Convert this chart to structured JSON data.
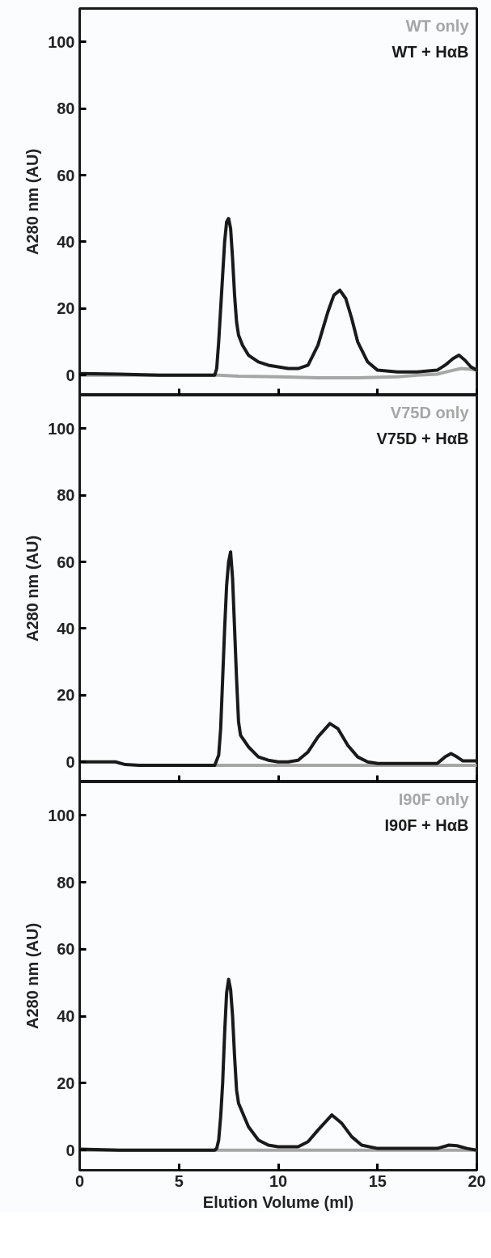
{
  "chart_data": [
    {
      "type": "line",
      "ylabel": "A280 nm (AU)",
      "xlim": [
        0,
        20
      ],
      "xticks": [
        {
          "value": 0,
          "label": null
        },
        {
          "value": 5,
          "label": null
        },
        {
          "value": 10,
          "label": null
        },
        {
          "value": 15,
          "label": null
        },
        {
          "value": 20,
          "label": null
        }
      ],
      "ylim": [
        -6,
        110
      ],
      "yticks": [
        0,
        20,
        40,
        60,
        80,
        100
      ],
      "tick_labels": "y",
      "legend": "top right",
      "grid": false,
      "series": [
        {
          "name": "WT only",
          "color": "#a6a6a6",
          "x": [
            0,
            2,
            4,
            6,
            7,
            8,
            10,
            12,
            14,
            16,
            17,
            18,
            18.6,
            19.2,
            19.6,
            20
          ],
          "values": [
            0,
            0,
            0,
            0,
            0,
            -0.3,
            -0.5,
            -0.8,
            -0.8,
            -0.5,
            0,
            0.3,
            1.2,
            2,
            1.8,
            1.5
          ]
        },
        {
          "name": "WT + HαB",
          "color": "#1a1a1a",
          "x": [
            0,
            2,
            4,
            6,
            6.8,
            6.9,
            7.0,
            7.1,
            7.2,
            7.3,
            7.4,
            7.5,
            7.6,
            7.7,
            7.8,
            7.9,
            8.0,
            8.2,
            8.5,
            9,
            9.5,
            10,
            10.5,
            11,
            11.5,
            12,
            12.5,
            12.8,
            13.1,
            13.4,
            13.7,
            14,
            14.5,
            15,
            16,
            17,
            18,
            18.4,
            18.8,
            19.1,
            19.4,
            19.7,
            20
          ],
          "values": [
            0.5,
            0.3,
            0,
            0,
            0,
            2,
            10,
            20,
            30,
            40,
            46,
            47,
            44,
            35,
            24,
            16,
            12,
            9,
            6,
            4,
            3,
            2.5,
            2,
            2,
            3,
            9,
            19,
            24,
            25.5,
            23,
            17,
            10,
            4,
            1.5,
            1,
            1,
            1.5,
            3,
            5,
            6,
            4.5,
            2.5,
            1.5
          ]
        }
      ]
    },
    {
      "type": "line",
      "ylabel": "A280 nm (AU)",
      "xlim": [
        0,
        20
      ],
      "xticks": [
        {
          "value": 0,
          "label": null
        },
        {
          "value": 5,
          "label": null
        },
        {
          "value": 10,
          "label": null
        },
        {
          "value": 15,
          "label": null
        },
        {
          "value": 20,
          "label": null
        }
      ],
      "ylim": [
        -6,
        110
      ],
      "yticks": [
        0,
        20,
        40,
        60,
        80,
        100
      ],
      "tick_labels": "y",
      "legend": "top right",
      "grid": false,
      "series": [
        {
          "name": "V75D only",
          "color": "#a6a6a6",
          "x": [
            6.8,
            8,
            10,
            12,
            14,
            16,
            18,
            20
          ],
          "values": [
            -1,
            -1,
            -1,
            -1,
            -1,
            -1,
            -1,
            -1
          ]
        },
        {
          "name": "V75D + HαB",
          "color": "#1a1a1a",
          "x": [
            0,
            1,
            1.8,
            2.3,
            3,
            5,
            6.8,
            7.0,
            7.1,
            7.2,
            7.3,
            7.4,
            7.5,
            7.6,
            7.7,
            7.8,
            7.9,
            8.0,
            8.1,
            8.5,
            9,
            9.5,
            10,
            10.5,
            11,
            11.5,
            12,
            12.6,
            13,
            13.5,
            14,
            14.5,
            15,
            17,
            18,
            18.4,
            18.7,
            19.0,
            19.3,
            20
          ],
          "values": [
            0,
            0,
            0,
            -0.8,
            -1,
            -1,
            -1,
            2,
            10,
            25,
            40,
            53,
            60,
            63,
            55,
            40,
            25,
            12,
            8,
            4.5,
            1.5,
            0.5,
            0,
            0,
            0.5,
            3,
            7.5,
            11.5,
            10,
            5,
            1.5,
            0,
            -0.5,
            -0.5,
            -0.5,
            1.5,
            2.5,
            1.5,
            0.3,
            0.3
          ]
        }
      ]
    },
    {
      "type": "line",
      "ylabel": "A280 nm (AU)",
      "xlabel": "Elution Volume (ml)",
      "xlim": [
        0,
        20
      ],
      "xticks": [
        0,
        5,
        10,
        15,
        20
      ],
      "ylim": [
        -6,
        110
      ],
      "yticks": [
        0,
        20,
        40,
        60,
        80,
        100
      ],
      "legend": "top right",
      "grid": false,
      "series": [
        {
          "name": "I90F only",
          "color": "#a6a6a6",
          "x": [
            0,
            2,
            4,
            6,
            8,
            10,
            12,
            14,
            16,
            18,
            20
          ],
          "values": [
            0,
            0,
            0,
            0,
            0,
            0,
            0,
            0,
            0,
            0,
            0
          ]
        },
        {
          "name": "I90F + HαB",
          "color": "#1a1a1a",
          "x": [
            0,
            2,
            4,
            6,
            6.8,
            6.9,
            7.0,
            7.1,
            7.2,
            7.3,
            7.4,
            7.5,
            7.6,
            7.7,
            7.8,
            7.9,
            8.0,
            8.5,
            9,
            9.5,
            10,
            11,
            11.5,
            12,
            12.7,
            13.2,
            13.7,
            14.2,
            15,
            18,
            18.6,
            19,
            19.5,
            20
          ],
          "values": [
            0.3,
            0,
            0,
            0,
            0,
            0.5,
            3,
            10,
            20,
            35,
            47,
            51,
            48,
            40,
            28,
            18,
            14,
            7,
            3,
            1.5,
            1,
            1,
            2.5,
            6,
            10.5,
            8,
            4,
            1.5,
            0.5,
            0.5,
            1.5,
            1.3,
            0.5,
            0
          ]
        }
      ]
    }
  ]
}
